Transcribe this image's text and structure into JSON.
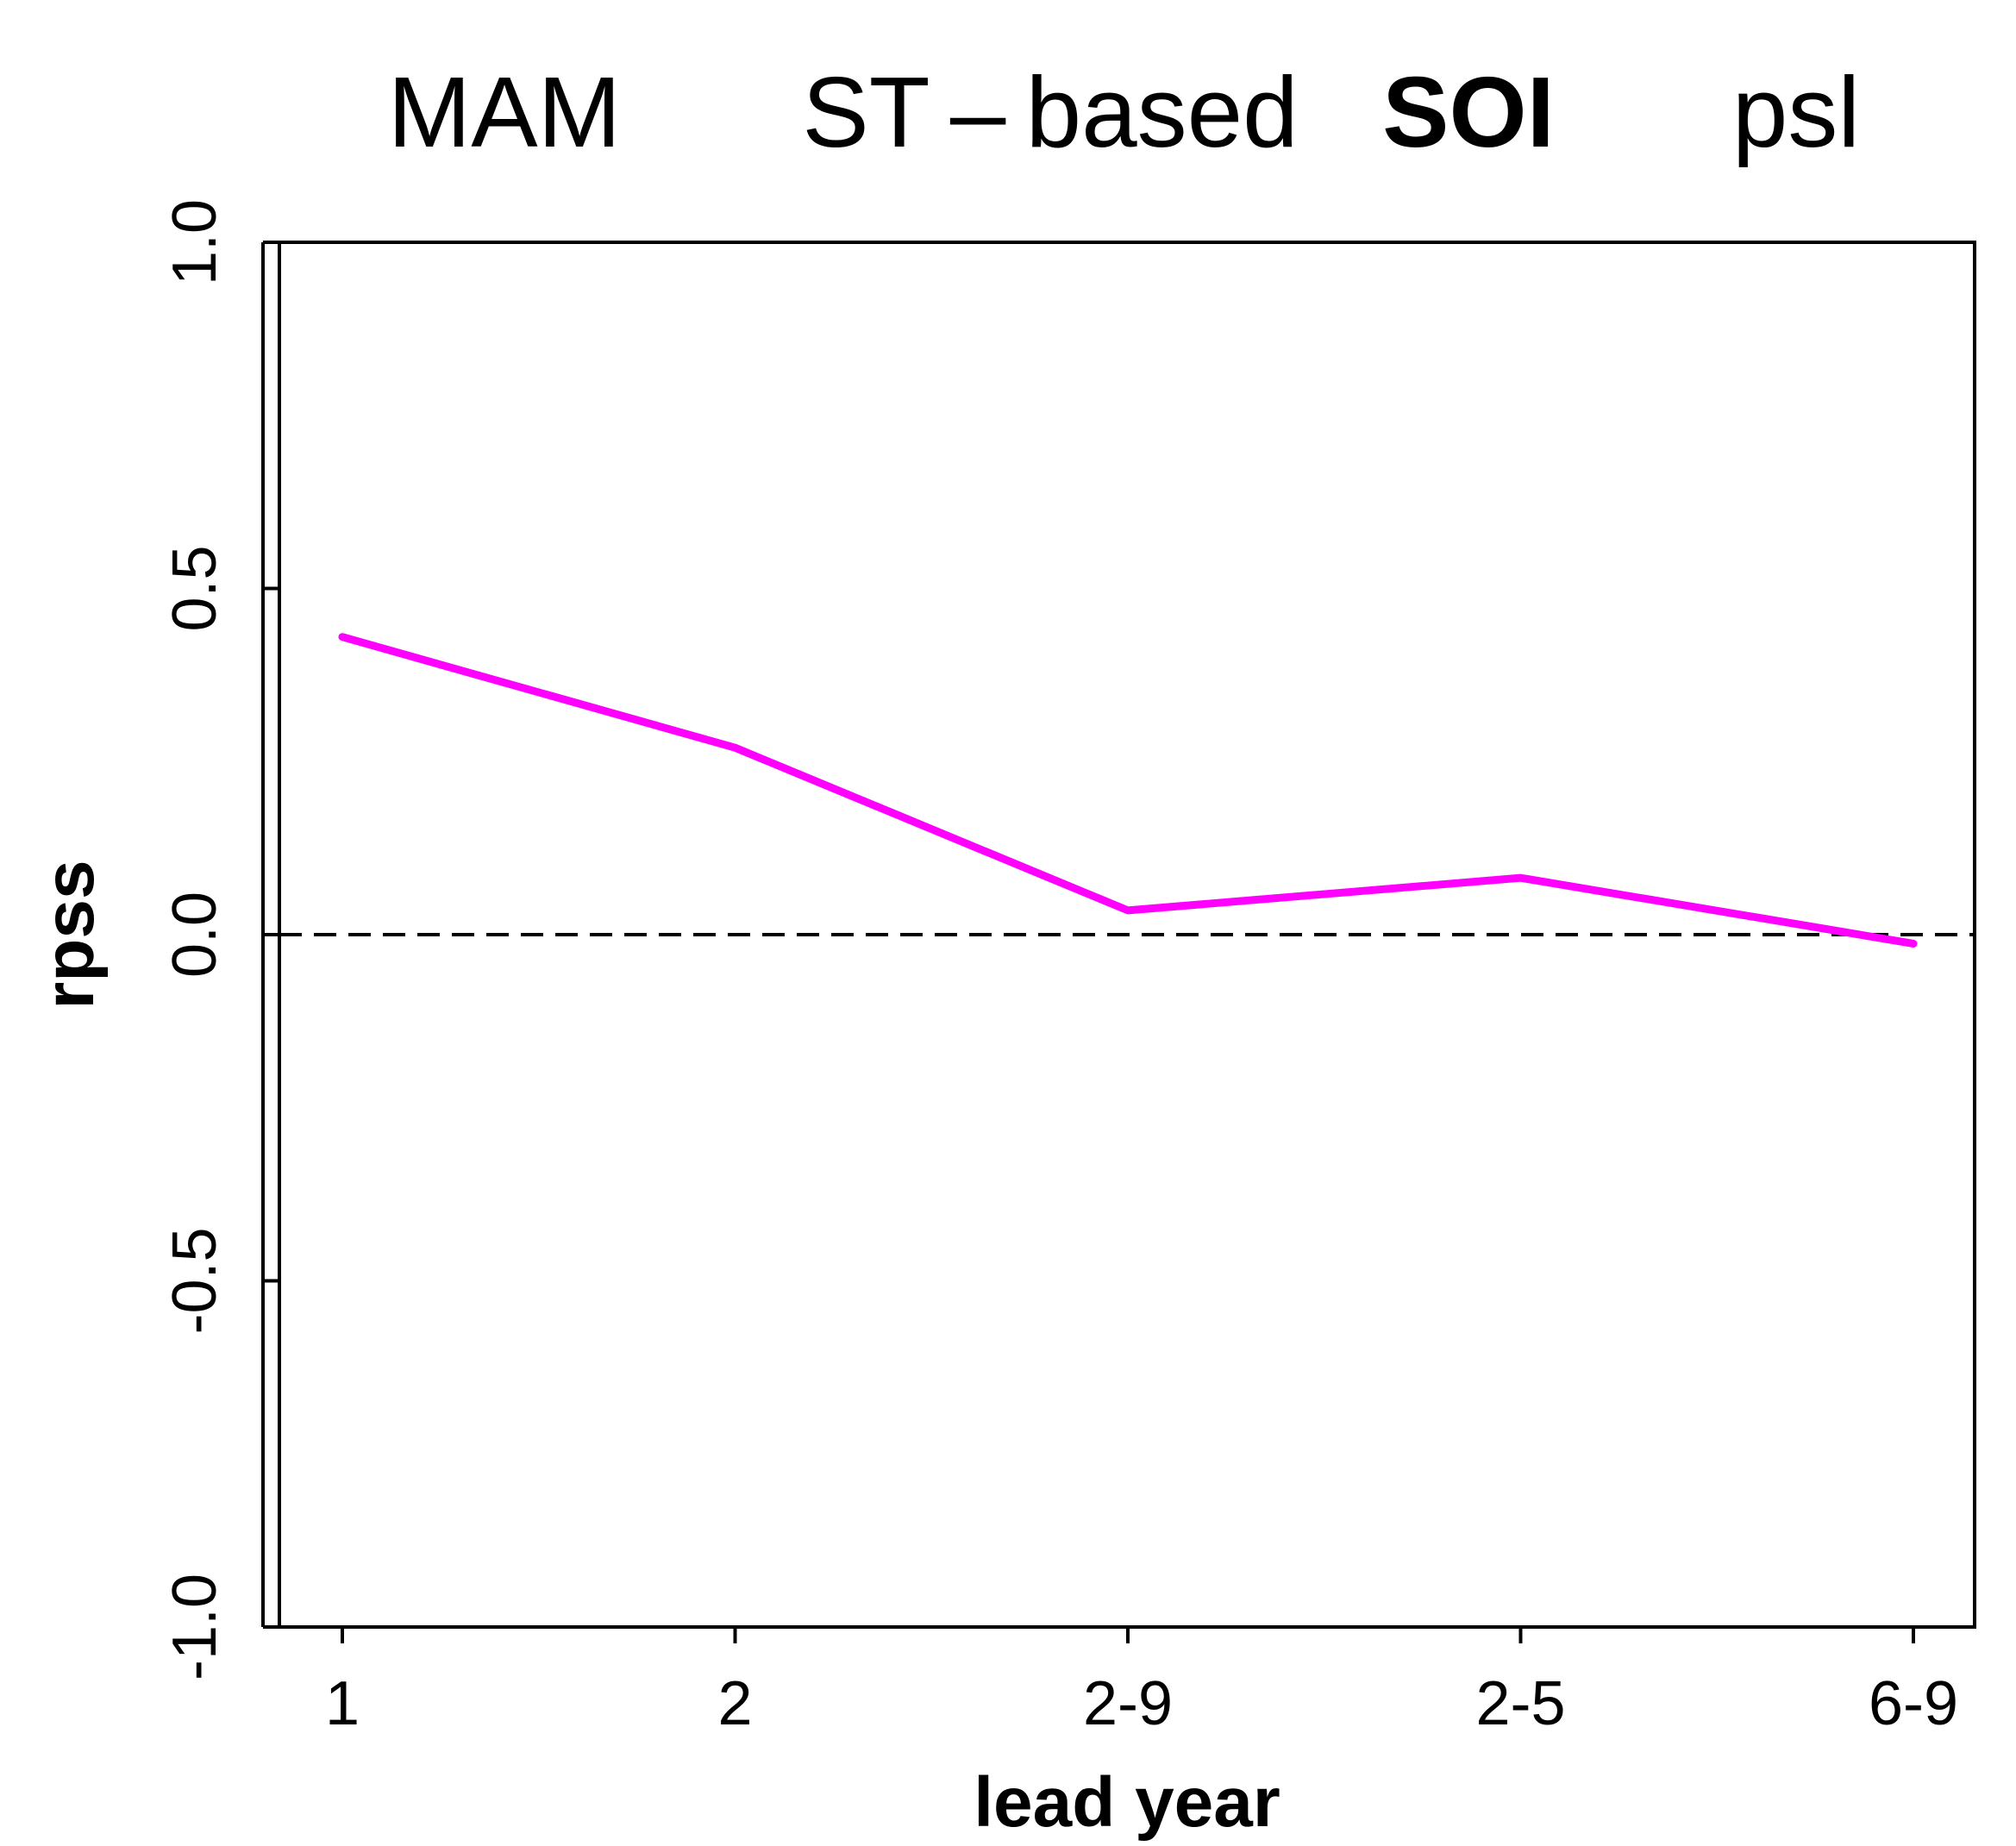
{
  "chart_data": {
    "type": "line",
    "title_parts": [
      {
        "text": "MAM",
        "bold": false
      },
      {
        "text": "ST – based",
        "bold": false
      },
      {
        "text": "SOI",
        "bold": true
      },
      {
        "text": "psl",
        "bold": false
      }
    ],
    "xlabel": "lead year",
    "ylabel": "rpss",
    "categories": [
      "1",
      "2",
      "2-9",
      "2-5",
      "6-9"
    ],
    "series": [
      {
        "color": "#ff00ff",
        "values": [
          0.43,
          0.27,
          0.035,
          0.082,
          -0.013
        ]
      }
    ],
    "ylim": [
      -1.0,
      1.0
    ],
    "yticks": [
      -1.0,
      -0.5,
      0.0,
      0.5,
      1.0
    ],
    "ytick_labels": [
      "-1.0",
      "-0.5",
      "0.0",
      "0.5",
      "1.0"
    ],
    "reference_line": {
      "y": 0.0,
      "style": "dashed",
      "color": "#000000"
    },
    "grid": false,
    "legend": "none"
  }
}
